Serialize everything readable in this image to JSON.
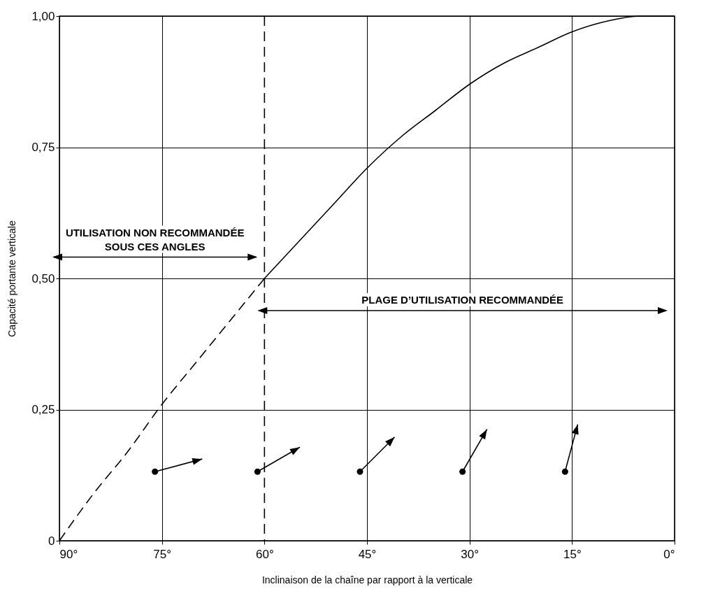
{
  "chart_data": {
    "type": "line",
    "xlabel": "Inclinaison de la chaîne par rapport à la verticale",
    "ylabel": "Capacité portante verticale",
    "series": [
      {
        "color": "#000000",
        "line_style": "dashed",
        "x": [
          90,
          85,
          80,
          75,
          70,
          65,
          60
        ],
        "values": [
          0,
          0.09,
          0.17,
          0.26,
          0.34,
          0.42,
          0.5
        ]
      },
      {
        "color": "#000000",
        "line_style": "solid",
        "x": [
          60,
          55,
          50,
          45,
          40,
          35,
          30,
          25,
          20,
          15,
          10,
          5,
          0
        ],
        "values": [
          0.5,
          0.57,
          0.64,
          0.71,
          0.77,
          0.82,
          0.87,
          0.91,
          0.94,
          0.97,
          0.99,
          1.0,
          1.0
        ]
      }
    ],
    "xlim": [
      90,
      0
    ],
    "xticks": [
      {
        "value": 90,
        "label": "90°"
      },
      {
        "value": 75,
        "label": "75°"
      },
      {
        "value": 60,
        "label": "60°"
      },
      {
        "value": 45,
        "label": "45°"
      },
      {
        "value": 30,
        "label": "30°"
      },
      {
        "value": 15,
        "label": "15°"
      },
      {
        "value": 0,
        "label": "0°"
      }
    ],
    "ylim": [
      0,
      1
    ],
    "yticks": [
      {
        "value": 0,
        "label": "0"
      },
      {
        "value": 0.25,
        "label": "0,25"
      },
      {
        "value": 0.5,
        "label": "0,50"
      },
      {
        "value": 0.75,
        "label": "0,75"
      },
      {
        "value": 1,
        "label": "1,00"
      }
    ],
    "grid": true,
    "marker": "none",
    "ref_lines": [
      {
        "axis": "x",
        "value": 60,
        "line_style": "dashed"
      }
    ],
    "annotations": [
      "UTILISATION NON RECOMMANDÉE SOUS CES ANGLES",
      "PLAGE D’UTILISATION RECOMMANDÉE"
    ]
  }
}
